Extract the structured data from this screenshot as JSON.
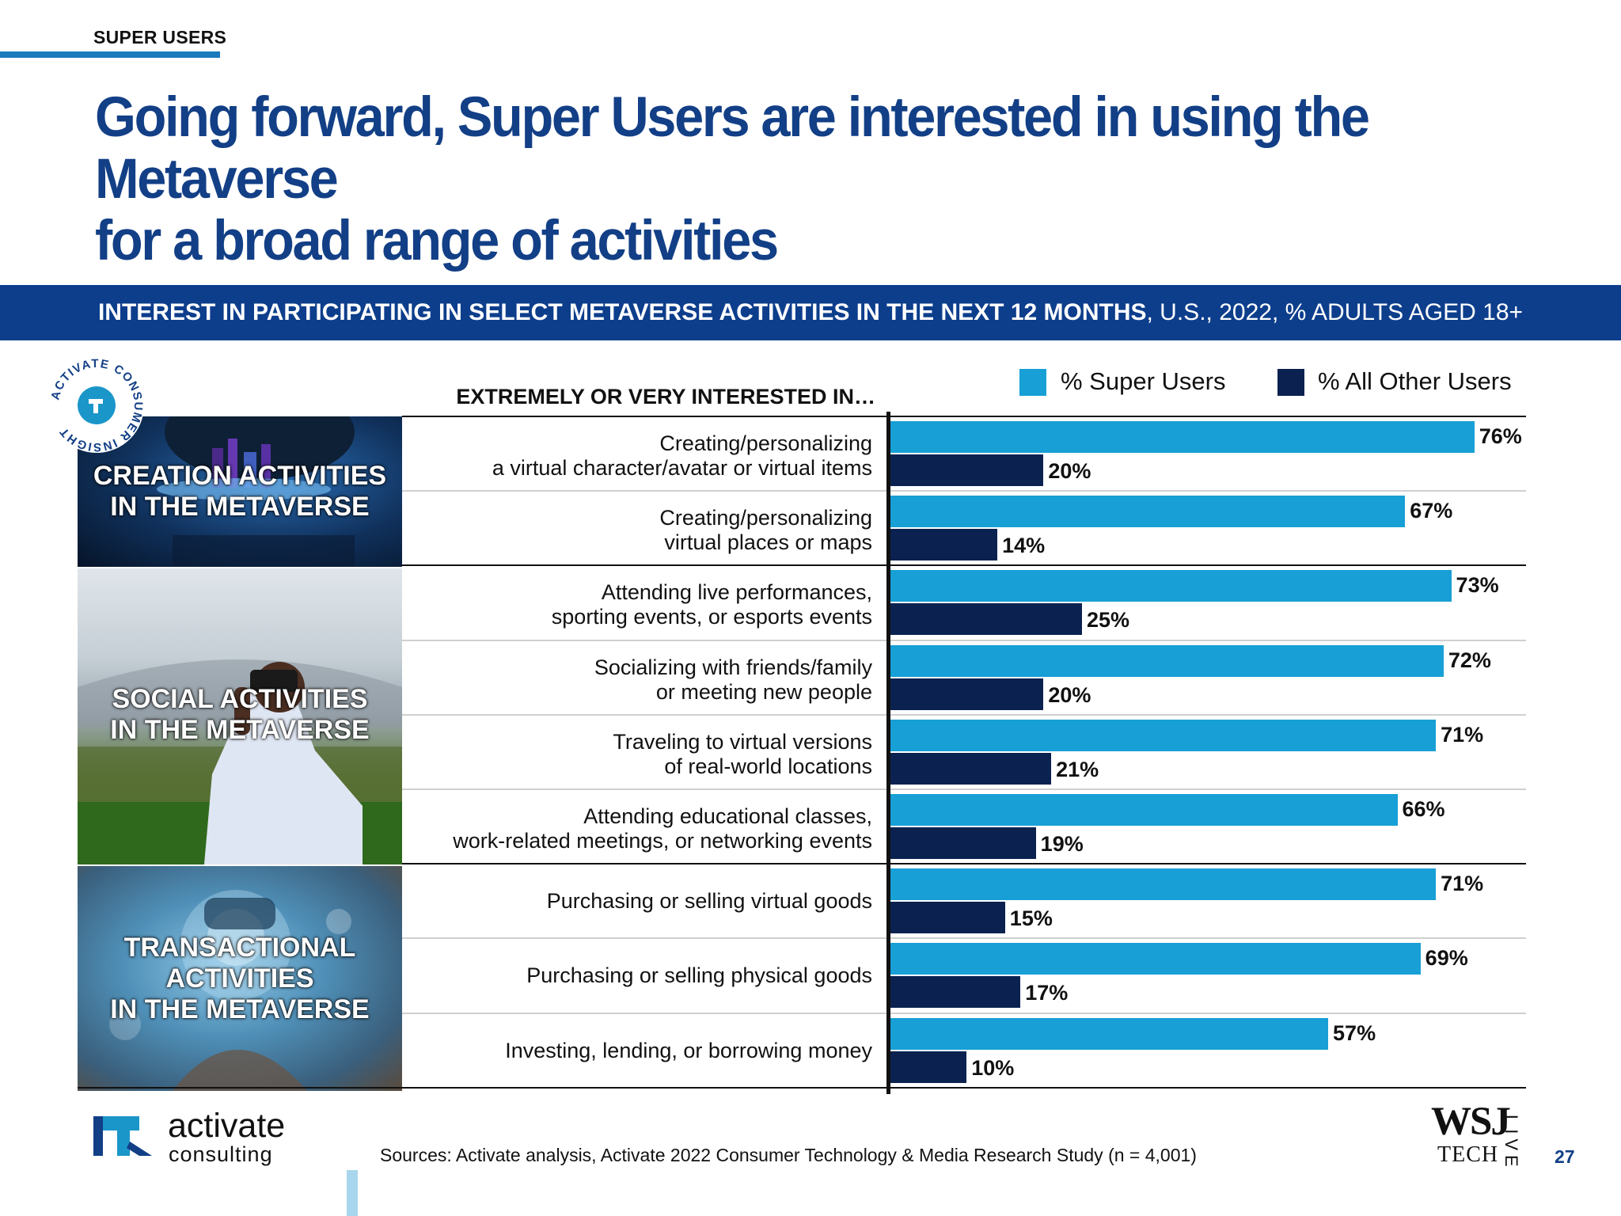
{
  "section_label": "SUPER USERS",
  "title": {
    "line1": "Going forward, Super Users are interested in using the Metaverse",
    "line2": "for a broad range of activities"
  },
  "banner": {
    "bold": "INTEREST IN PARTICIPATING IN SELECT METAVERSE ACTIVITIES IN THE NEXT 12 MONTHS",
    "rest": ", U.S., 2022, % ADULTS AGED 18+"
  },
  "badge": {
    "ring_text": "ACTIVATE CONSUMER INSIGHT"
  },
  "categories": [
    {
      "line1": "CREATION ACTIVITIES",
      "line2": "IN THE METAVERSE"
    },
    {
      "line1": "SOCIAL ACTIVITIES",
      "line2": "IN THE METAVERSE"
    },
    {
      "line1": "TRANSACTIONAL",
      "line2": "ACTIVITIES",
      "line3": "IN THE METAVERSE"
    }
  ],
  "colors": {
    "super": "#189fd6",
    "other": "#0b2250",
    "title": "#123f86",
    "banner": "#0d3e8c"
  },
  "chart_data": {
    "type": "bar",
    "orientation": "horizontal",
    "title": "EXTREMELY OR VERY INTERESTED IN…",
    "xlim": [
      0,
      100
    ],
    "value_suffix": "%",
    "legend": [
      "% Super Users",
      "% All Other Users"
    ],
    "categories": [
      [
        "Creating/personalizing",
        "a virtual character/avatar or virtual items"
      ],
      [
        "Creating/personalizing",
        "virtual places or maps"
      ],
      [
        "Attending live performances,",
        "sporting events, or esports events"
      ],
      [
        "Socializing with friends/family",
        "or meeting new people"
      ],
      [
        "Traveling to virtual versions",
        "of real-world locations"
      ],
      [
        "Attending educational classes,",
        "work-related meetings, or networking events"
      ],
      [
        "Purchasing or selling virtual goods"
      ],
      [
        "Purchasing or selling physical goods"
      ],
      [
        "Investing, lending, or borrowing money"
      ]
    ],
    "series": [
      {
        "name": "% Super Users",
        "values": [
          76,
          67,
          73,
          72,
          71,
          66,
          71,
          69,
          57
        ]
      },
      {
        "name": "% All Other Users",
        "values": [
          20,
          14,
          25,
          20,
          21,
          19,
          15,
          17,
          10
        ]
      }
    ]
  },
  "footer": {
    "sources": "Sources: Activate analysis, Activate 2022 Consumer Technology & Media Research Study (n = 4,001)",
    "logo_name": "activate",
    "logo_sub": "consulting",
    "wsj": "WSJ",
    "tech": "TECH",
    "live": "LIVE",
    "page": "27"
  }
}
